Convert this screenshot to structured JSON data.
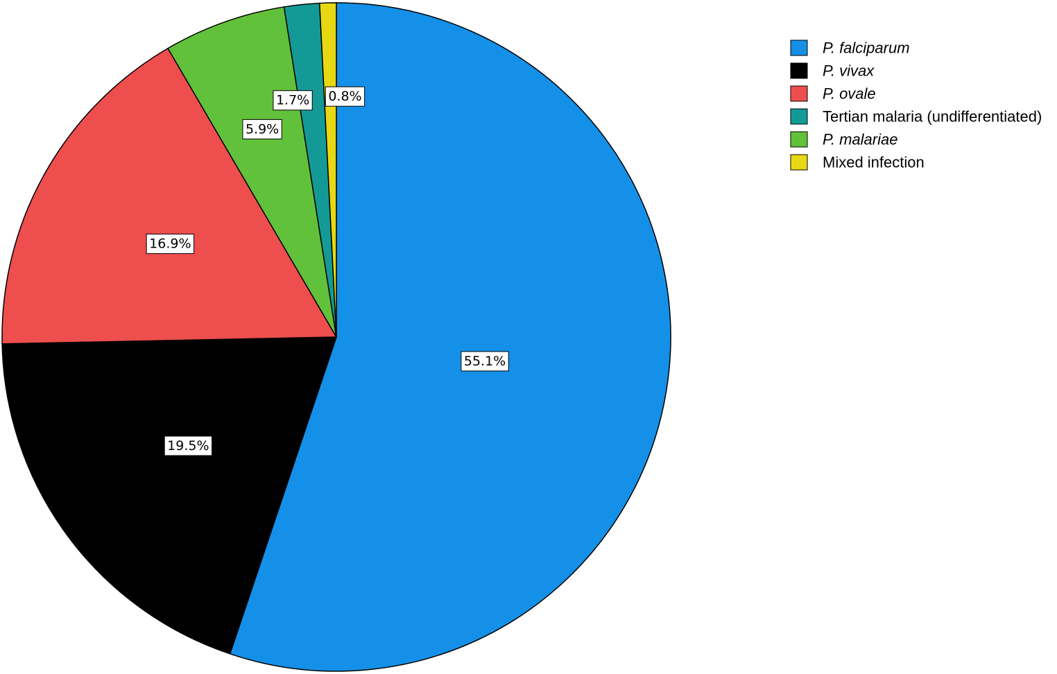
{
  "chart_data": {
    "type": "pie",
    "title": "",
    "start_angle_deg": 0,
    "direction": "clockwise",
    "slices": [
      {
        "label": "P. falciparum",
        "value": 55.1,
        "display": "55.1%",
        "color": "#1590e8",
        "italic": true
      },
      {
        "label": "P. vivax",
        "value": 19.5,
        "display": "19.5%",
        "color": "#000000",
        "italic": true
      },
      {
        "label": "P. ovale",
        "value": 16.9,
        "display": "16.9%",
        "color": "#ee4e4e",
        "italic": true
      },
      {
        "label": "P. malariae",
        "value": 5.9,
        "display": "5.9%",
        "color": "#62c13b",
        "italic": true
      },
      {
        "label": "Tertian malaria (undifferentiated)",
        "value": 1.7,
        "display": "1.7%",
        "color": "#149a96",
        "italic": false
      },
      {
        "label": "Mixed infection",
        "value": 0.8,
        "display": "0.8%",
        "color": "#e8d814",
        "italic": false
      }
    ],
    "legend_order": [
      "P. falciparum",
      "P. vivax",
      "P. ovale",
      "Tertian malaria (undifferentiated)",
      "P. malariae",
      "Mixed infection"
    ],
    "legend_placement": "top-right"
  }
}
